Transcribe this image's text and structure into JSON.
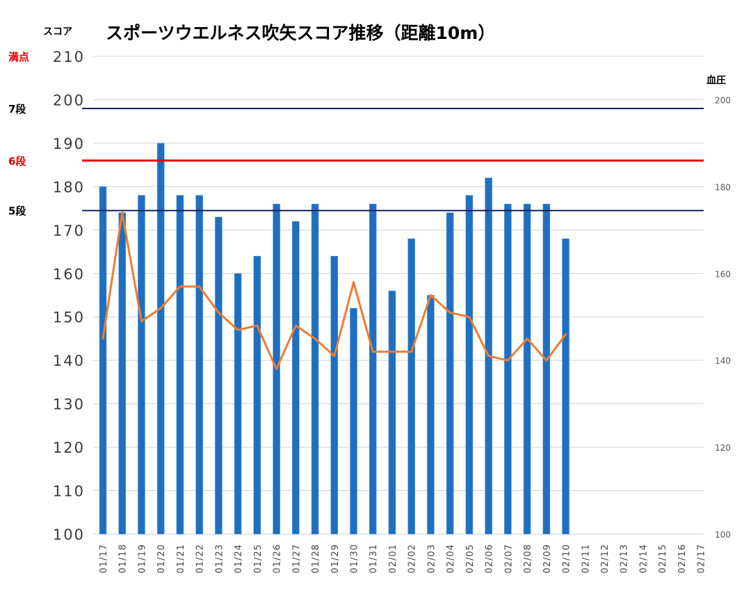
{
  "chart_data": {
    "type": "bar",
    "title": "スポーツウエルネス吹矢スコア推移（距離10m）",
    "ylabel_left": "スコア",
    "ylabel_right": "血圧",
    "ylim_left": [
      100,
      210
    ],
    "yticks_left": [
      "100",
      "110",
      "120",
      "130",
      "140",
      "150",
      "160",
      "170",
      "180",
      "190",
      "200",
      "210"
    ],
    "ylim_right": [
      100,
      210
    ],
    "yticks_right": [
      "100",
      "120",
      "140",
      "160",
      "180",
      "200"
    ],
    "categories": [
      "01/17",
      "01/18",
      "01/19",
      "01/20",
      "01/21",
      "01/22",
      "01/23",
      "01/24",
      "01/25",
      "01/26",
      "01/27",
      "01/28",
      "01/29",
      "01/30",
      "01/31",
      "02/01",
      "02/02",
      "02/03",
      "02/04",
      "02/05",
      "02/06",
      "02/07",
      "02/08",
      "02/09",
      "02/10",
      "02/11",
      "02/12",
      "02/13",
      "02/14",
      "02/15",
      "02/16",
      "02/17"
    ],
    "series": [
      {
        "kind": "bar",
        "axis": "left",
        "color": "#1f6fc1",
        "values": [
          180,
          174,
          178,
          190,
          178,
          178,
          173,
          160,
          164,
          176,
          172,
          176,
          164,
          152,
          176,
          156,
          168,
          155,
          174,
          178,
          182,
          176,
          176,
          176,
          168,
          null,
          null,
          null,
          null,
          null,
          null,
          null
        ]
      },
      {
        "kind": "line",
        "axis": "right",
        "color": "#ed7d31",
        "values": [
          145,
          174,
          149,
          152,
          157,
          157,
          151,
          147,
          148,
          138,
          148,
          145,
          141,
          158,
          142,
          142,
          142,
          155,
          151,
          150,
          141,
          140,
          145,
          140,
          146,
          null,
          null,
          null,
          null,
          null,
          null,
          null
        ]
      }
    ],
    "reference_lines": [
      {
        "label": "満点",
        "value": 210,
        "color": "#e00000",
        "line": false
      },
      {
        "label": "7段",
        "value": 198,
        "color": "#000000",
        "line_color": "#14205e"
      },
      {
        "label": "6段",
        "value": 186,
        "color": "#e00000",
        "line_color": "#e00000"
      },
      {
        "label": "5段",
        "value": 174.5,
        "color": "#000000",
        "line_color": "#14205e"
      }
    ],
    "grid": true
  }
}
